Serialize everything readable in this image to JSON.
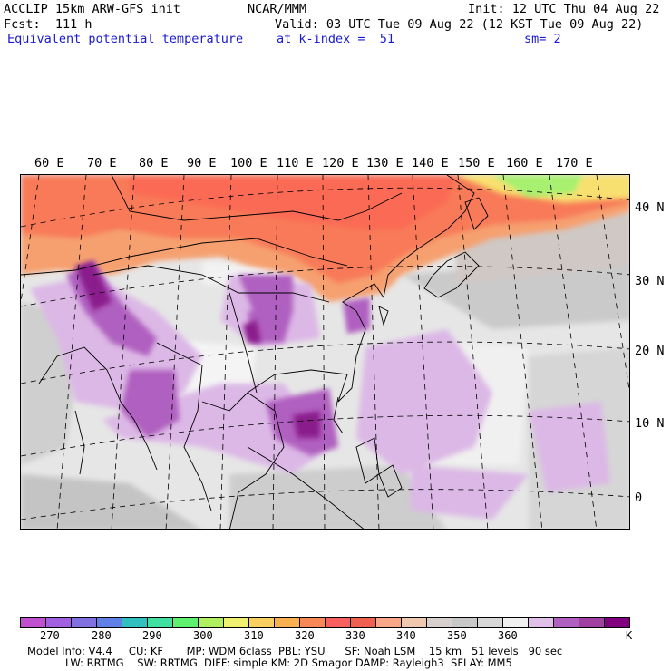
{
  "header": {
    "model": "ACCLIP 15km ARW-GFS init",
    "fcst": "Fcst:  111 h",
    "field": "Equivalent potential temperature",
    "center": "NCAR/MMM",
    "init": "Init: 12 UTC Thu 04 Aug 22",
    "valid": "Valid: 03 UTC Tue 09 Aug 22 (12 KST Tue 09 Aug 22)",
    "level": "at k-index =  51",
    "smoothing": "sm= 2"
  },
  "map": {
    "lon_labels": [
      "60 E",
      "70 E",
      "80 E",
      "90 E",
      "100 E",
      "110 E",
      "120 E",
      "130 E",
      "140 E",
      "150 E",
      "160 E",
      "170 E"
    ],
    "lat_labels": [
      "40 N",
      "30 N",
      "20 N",
      "10 N",
      "0"
    ]
  },
  "colorbar": {
    "colors": [
      "#c050d0",
      "#a060e0",
      "#8070e0",
      "#6080e8",
      "#30c0c0",
      "#40e0a0",
      "#60f070",
      "#b0f060",
      "#f0f070",
      "#f8d060",
      "#f8b050",
      "#f88858",
      "#f86060",
      "#f06050",
      "#f8a888",
      "#f0c8b0",
      "#d8d0cc",
      "#c8c8c8",
      "#d8d8d8",
      "#f0f0f0",
      "#e0c0e8",
      "#b060c0",
      "#a040a0",
      "#800080"
    ],
    "labels": [
      "270",
      "280",
      "290",
      "300",
      "310",
      "320",
      "330",
      "340",
      "350",
      "360"
    ],
    "unit": "K"
  },
  "footer": {
    "line1": "Model Info: V4.4     CU: KF       MP: WDM 6class  PBL: YSU      SF: Noah LSM    15 km   51 levels   90 sec",
    "line2": "LW: RRTMG    SW: RRTMG  DIFF: simple KM: 2D Smagor DAMP: Rayleigh3  SFLAY: MM5"
  }
}
